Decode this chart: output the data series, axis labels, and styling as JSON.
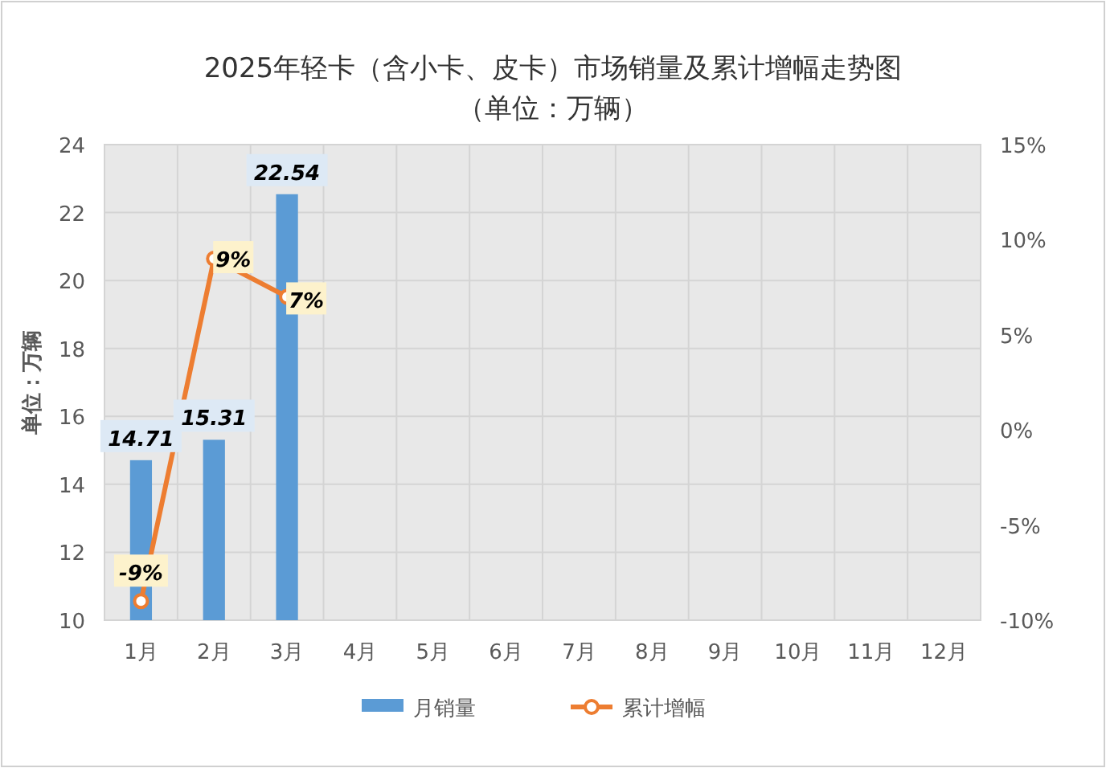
{
  "chart_data": {
    "type": "bar",
    "title": "2025年轻卡（含小卡、皮卡）市场销量及累计增幅走势图",
    "subtitle": "（单位：万辆）",
    "ylabel": "单位：万辆",
    "categories": [
      "1月",
      "2月",
      "3月",
      "4月",
      "5月",
      "6月",
      "7月",
      "8月",
      "9月",
      "10月",
      "11月",
      "12月"
    ],
    "series": [
      {
        "name": "月销量",
        "color": "#5b9bd5",
        "values": [
          14.71,
          15.31,
          22.54,
          null,
          null,
          null,
          null,
          null,
          null,
          null,
          null,
          null
        ],
        "value_labels": [
          "14.71",
          "15.31",
          "22.54",
          null,
          null,
          null,
          null,
          null,
          null,
          null,
          null,
          null
        ]
      },
      {
        "name": "累计增幅",
        "type": "line",
        "axis": "y2",
        "color": "#ed7d31",
        "values": [
          -9,
          9,
          7,
          null,
          null,
          null,
          null,
          null,
          null,
          null,
          null,
          null
        ],
        "value_labels": [
          "-9%",
          "9%",
          "7%",
          null,
          null,
          null,
          null,
          null,
          null,
          null,
          null,
          null
        ]
      }
    ],
    "ylim": [
      10,
      24
    ],
    "yticks": [
      10,
      12,
      14,
      16,
      18,
      20,
      22,
      24
    ],
    "y2lim": [
      -10,
      15
    ],
    "y2ticks": [
      {
        "value": -10,
        "label": "-10%"
      },
      {
        "value": -5,
        "label": "-5%"
      },
      {
        "value": 0,
        "label": "0%"
      },
      {
        "value": 5,
        "label": "5%"
      },
      {
        "value": 10,
        "label": "10%"
      },
      {
        "value": 15,
        "label": "15%"
      }
    ],
    "grid": true,
    "legend": "bottom",
    "marker": "circle",
    "line_style": "solid"
  }
}
